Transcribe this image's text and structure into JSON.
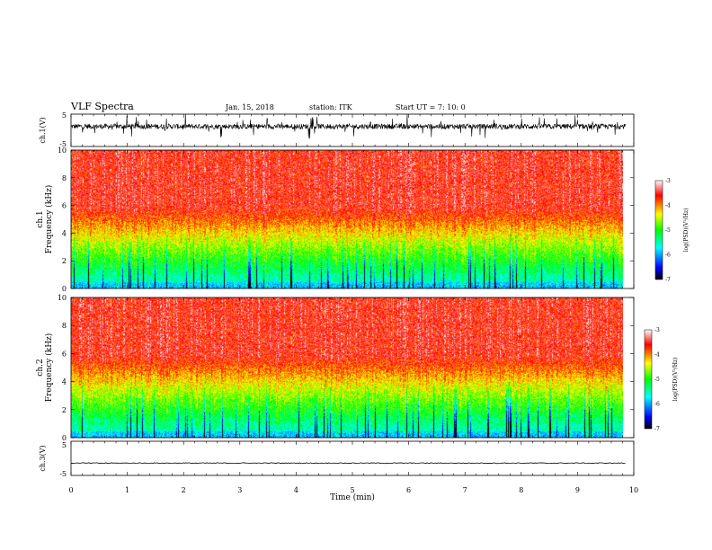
{
  "header": {
    "title": "VLF Spectra",
    "date": "Jan. 15, 2018",
    "station": "station: ITK",
    "start_ut": "Start UT = 7: 10: 0"
  },
  "chart_data": [
    {
      "type": "line",
      "ylabel": "ch.1(V)",
      "ylim": [
        -5,
        5
      ],
      "yticks": [
        "5",
        "-5"
      ],
      "xlim": [
        0,
        10
      ]
    },
    {
      "type": "heatmap",
      "ylabel": "ch.1\nFrequency (kHz)",
      "ylim": [
        0,
        10
      ],
      "yticks": [
        "0",
        "2",
        "4",
        "6",
        "8",
        "10"
      ],
      "xlim": [
        0,
        10
      ],
      "colorbar": {
        "label": "log(PSD)(V²/Hz)",
        "ticks": [
          "-3",
          "-4",
          "-5",
          "-6",
          "-7"
        ],
        "range": [
          -7,
          -3
        ]
      }
    },
    {
      "type": "heatmap",
      "ylabel": "ch.2\nFrequency (kHz)",
      "ylim": [
        0,
        10
      ],
      "yticks": [
        "0",
        "2",
        "4",
        "6",
        "8",
        "10"
      ],
      "xlim": [
        0,
        10
      ],
      "colorbar": {
        "label": "log(PSD)(V²/Hz)",
        "ticks": [
          "-3",
          "-4",
          "-5",
          "-6",
          "-7"
        ],
        "range": [
          -7,
          -3
        ]
      }
    },
    {
      "type": "line",
      "ylabel": "ch.3(V)",
      "ylim": [
        -5,
        5
      ],
      "yticks": [
        "5",
        "-5"
      ],
      "xlim": [
        0,
        10
      ],
      "xlabel": "Time (min)",
      "xticks": [
        "0",
        "1",
        "2",
        "3",
        "4",
        "5",
        "6",
        "7",
        "8",
        "9",
        "10"
      ]
    }
  ]
}
